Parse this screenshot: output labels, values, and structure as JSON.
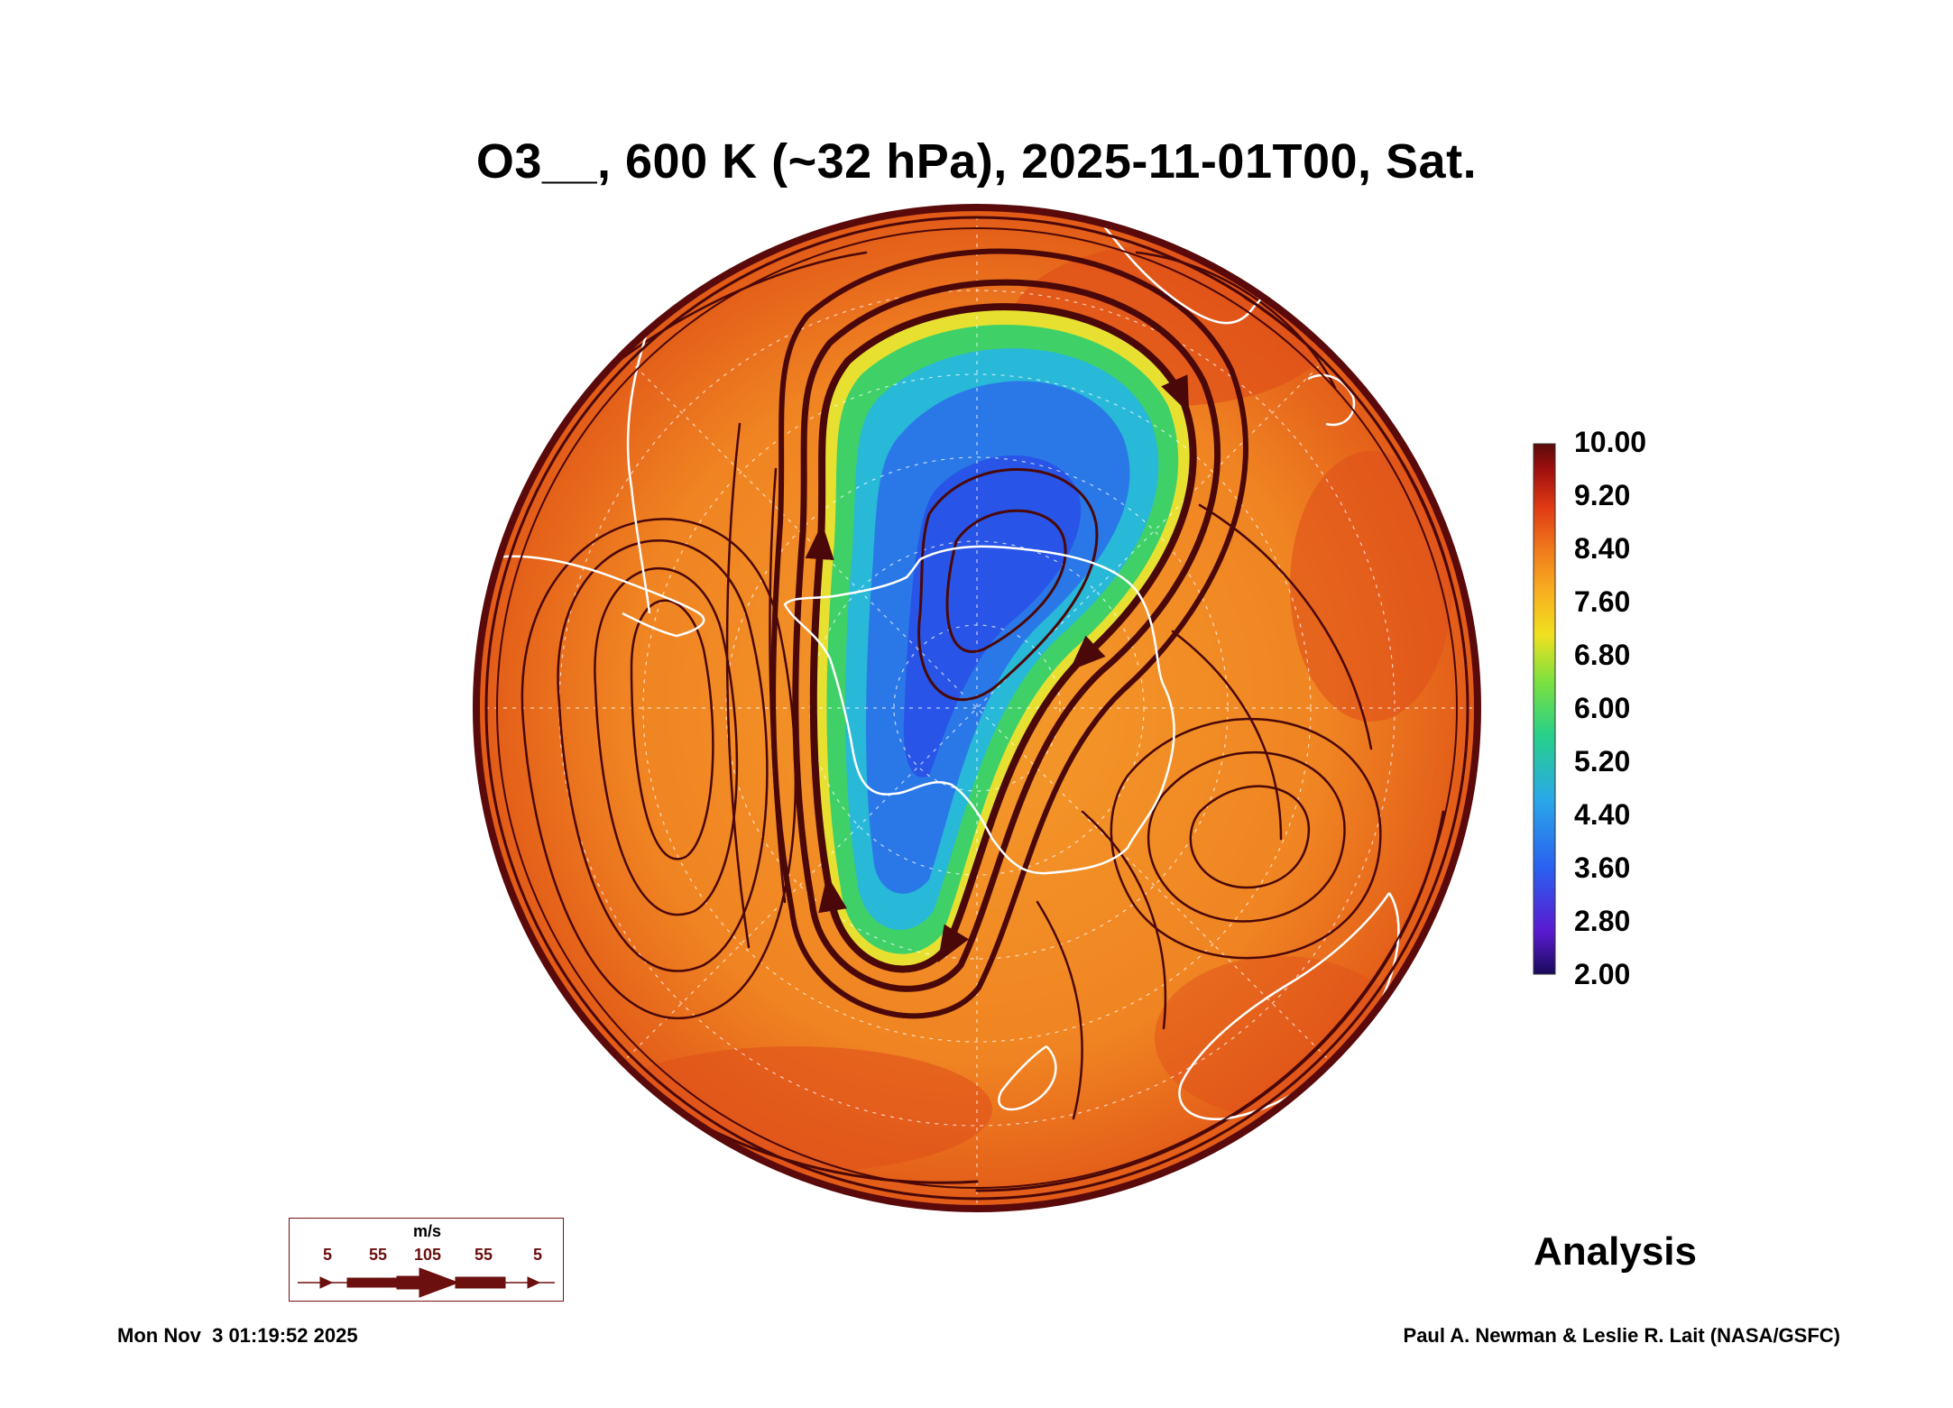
{
  "title": "O3__, 600 K (~32 hPa), 2025-11-01T00, Sat.",
  "colorbar": {
    "labels": [
      "10.00",
      "9.20",
      "8.40",
      "7.60",
      "6.80",
      "6.00",
      "5.20",
      "4.40",
      "3.60",
      "2.80",
      "2.00"
    ],
    "min": 2.0,
    "max": 10.0
  },
  "legend": {
    "unit": "m/s",
    "values": [
      "5",
      "55",
      "105",
      "55",
      "5"
    ]
  },
  "analysis_label": "Analysis",
  "timestamp": "Mon Nov  3 01:19:52 2025",
  "credit": "Paul A. Newman & Leslie R. Lait (NASA/GSFC)",
  "colors": {
    "outer_ring": "#5a0a0a",
    "streamline": "#4a0808",
    "coastline": "#ffffff",
    "high_ozone": "#f07a1c",
    "low_ozone": "#2a78e8"
  }
}
